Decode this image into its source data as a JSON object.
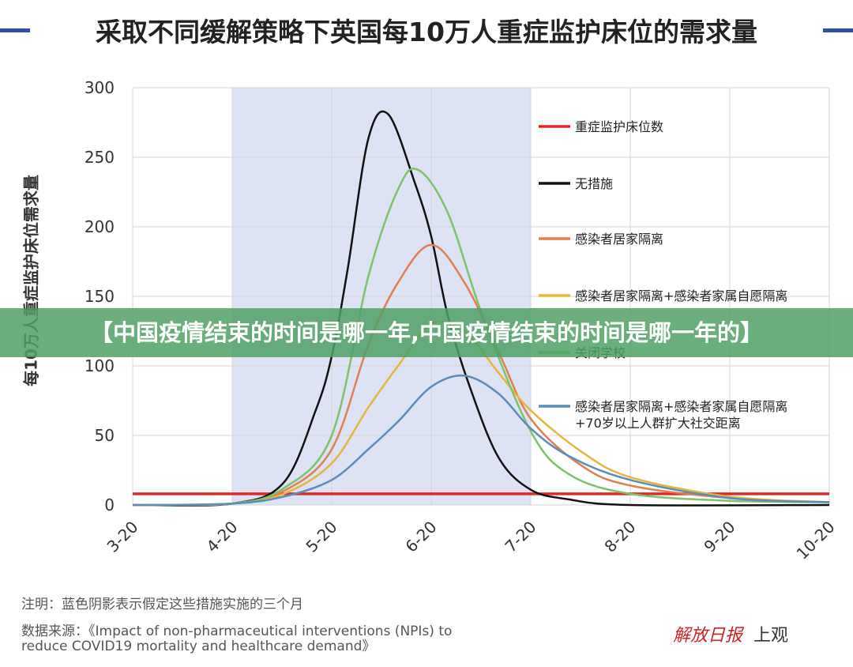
{
  "banner": "【中国疫情结束的时间是哪一年,中国疫情结束的时间是哪一年的】",
  "notes": {
    "note": "注明：蓝色阴影表示假定这些措施实施的三个月",
    "source_line1": "数据来源：《Impact of non-pharmaceutical interventions (NPIs) to",
    "source_line2": "reduce COVID19 mortality and healthcare demand》"
  },
  "logos": {
    "logo1": "解放日报",
    "logo2": "上观"
  },
  "chart_data": {
    "type": "line",
    "title": "采取不同缓解策略下英国每10万人重症监护床位的需求量",
    "ylabel": "每10万人重症监护床位需求量",
    "xlabel": "",
    "ylim": [
      0,
      300
    ],
    "yticks": [
      0,
      50,
      100,
      150,
      200,
      250,
      300
    ],
    "xticks": [
      "3-20",
      "4-20",
      "5-20",
      "6-20",
      "7-20",
      "8-20",
      "9-20",
      "10-20"
    ],
    "grid": true,
    "legend_position": "right",
    "shaded_region": [
      "4-20",
      "7-20"
    ],
    "shade_color": "#dde3f4",
    "series": [
      {
        "name": "重症监护床位数",
        "color": "#e0282a",
        "points": [
          [
            "3-20",
            8
          ],
          [
            "10-20",
            8
          ]
        ]
      },
      {
        "name": "无措施",
        "color": "#111111",
        "points": [
          [
            "3-20",
            0
          ],
          [
            "4-20",
            1
          ],
          [
            "5-05",
            16
          ],
          [
            "5-15",
            68
          ],
          [
            "5-20",
            107
          ],
          [
            "5-25",
            170
          ],
          [
            "6-01",
            263
          ],
          [
            "6-07",
            281
          ],
          [
            "6-15",
            232
          ],
          [
            "6-20",
            193
          ],
          [
            "6-25",
            136
          ],
          [
            "7-01",
            85
          ],
          [
            "7-10",
            34
          ],
          [
            "7-20",
            11
          ],
          [
            "8-01",
            4
          ],
          [
            "8-20",
            0
          ],
          [
            "10-20",
            0
          ]
        ]
      },
      {
        "name": "感染者居家隔离",
        "color": "#e07f4f",
        "points": [
          [
            "3-20",
            0
          ],
          [
            "4-20",
            1
          ],
          [
            "5-05",
            10
          ],
          [
            "5-20",
            40
          ],
          [
            "6-01",
            115
          ],
          [
            "6-10",
            160
          ],
          [
            "6-20",
            187
          ],
          [
            "6-30",
            160
          ],
          [
            "7-10",
            110
          ],
          [
            "7-20",
            62
          ],
          [
            "8-05",
            28
          ],
          [
            "8-20",
            14
          ],
          [
            "9-20",
            5
          ],
          [
            "10-20",
            2
          ]
        ]
      },
      {
        "name": "感染者居家隔离+感染者家属自愿隔离",
        "color": "#e6b53a",
        "points": [
          [
            "3-20",
            0
          ],
          [
            "4-20",
            1
          ],
          [
            "5-05",
            8
          ],
          [
            "5-20",
            30
          ],
          [
            "6-01",
            70
          ],
          [
            "6-10",
            100
          ],
          [
            "6-20",
            130
          ],
          [
            "6-30",
            125
          ],
          [
            "7-10",
            95
          ],
          [
            "7-20",
            68
          ],
          [
            "8-05",
            38
          ],
          [
            "8-20",
            20
          ],
          [
            "9-20",
            6
          ],
          [
            "10-20",
            2
          ]
        ]
      },
      {
        "name": "关闭学校",
        "color": "#7cc36a",
        "points": [
          [
            "3-20",
            0
          ],
          [
            "4-20",
            1
          ],
          [
            "5-05",
            12
          ],
          [
            "5-20",
            50
          ],
          [
            "6-01",
            164
          ],
          [
            "6-10",
            227
          ],
          [
            "6-16",
            241
          ],
          [
            "6-25",
            210
          ],
          [
            "7-05",
            136
          ],
          [
            "7-20",
            53
          ],
          [
            "8-01",
            22
          ],
          [
            "8-20",
            8
          ],
          [
            "9-20",
            3
          ],
          [
            "10-20",
            2
          ]
        ]
      },
      {
        "name": "感染者居家隔离+感染者家属自愿隔离+70岁以上人群扩大社交距离",
        "color": "#5b8db8",
        "points": [
          [
            "3-20",
            0
          ],
          [
            "4-20",
            1
          ],
          [
            "5-05",
            6
          ],
          [
            "5-20",
            18
          ],
          [
            "6-01",
            40
          ],
          [
            "6-10",
            60
          ],
          [
            "6-20",
            85
          ],
          [
            "6-30",
            93
          ],
          [
            "7-10",
            80
          ],
          [
            "7-20",
            55
          ],
          [
            "8-01",
            35
          ],
          [
            "8-20",
            18
          ],
          [
            "9-20",
            5
          ],
          [
            "10-20",
            2
          ]
        ]
      }
    ]
  }
}
